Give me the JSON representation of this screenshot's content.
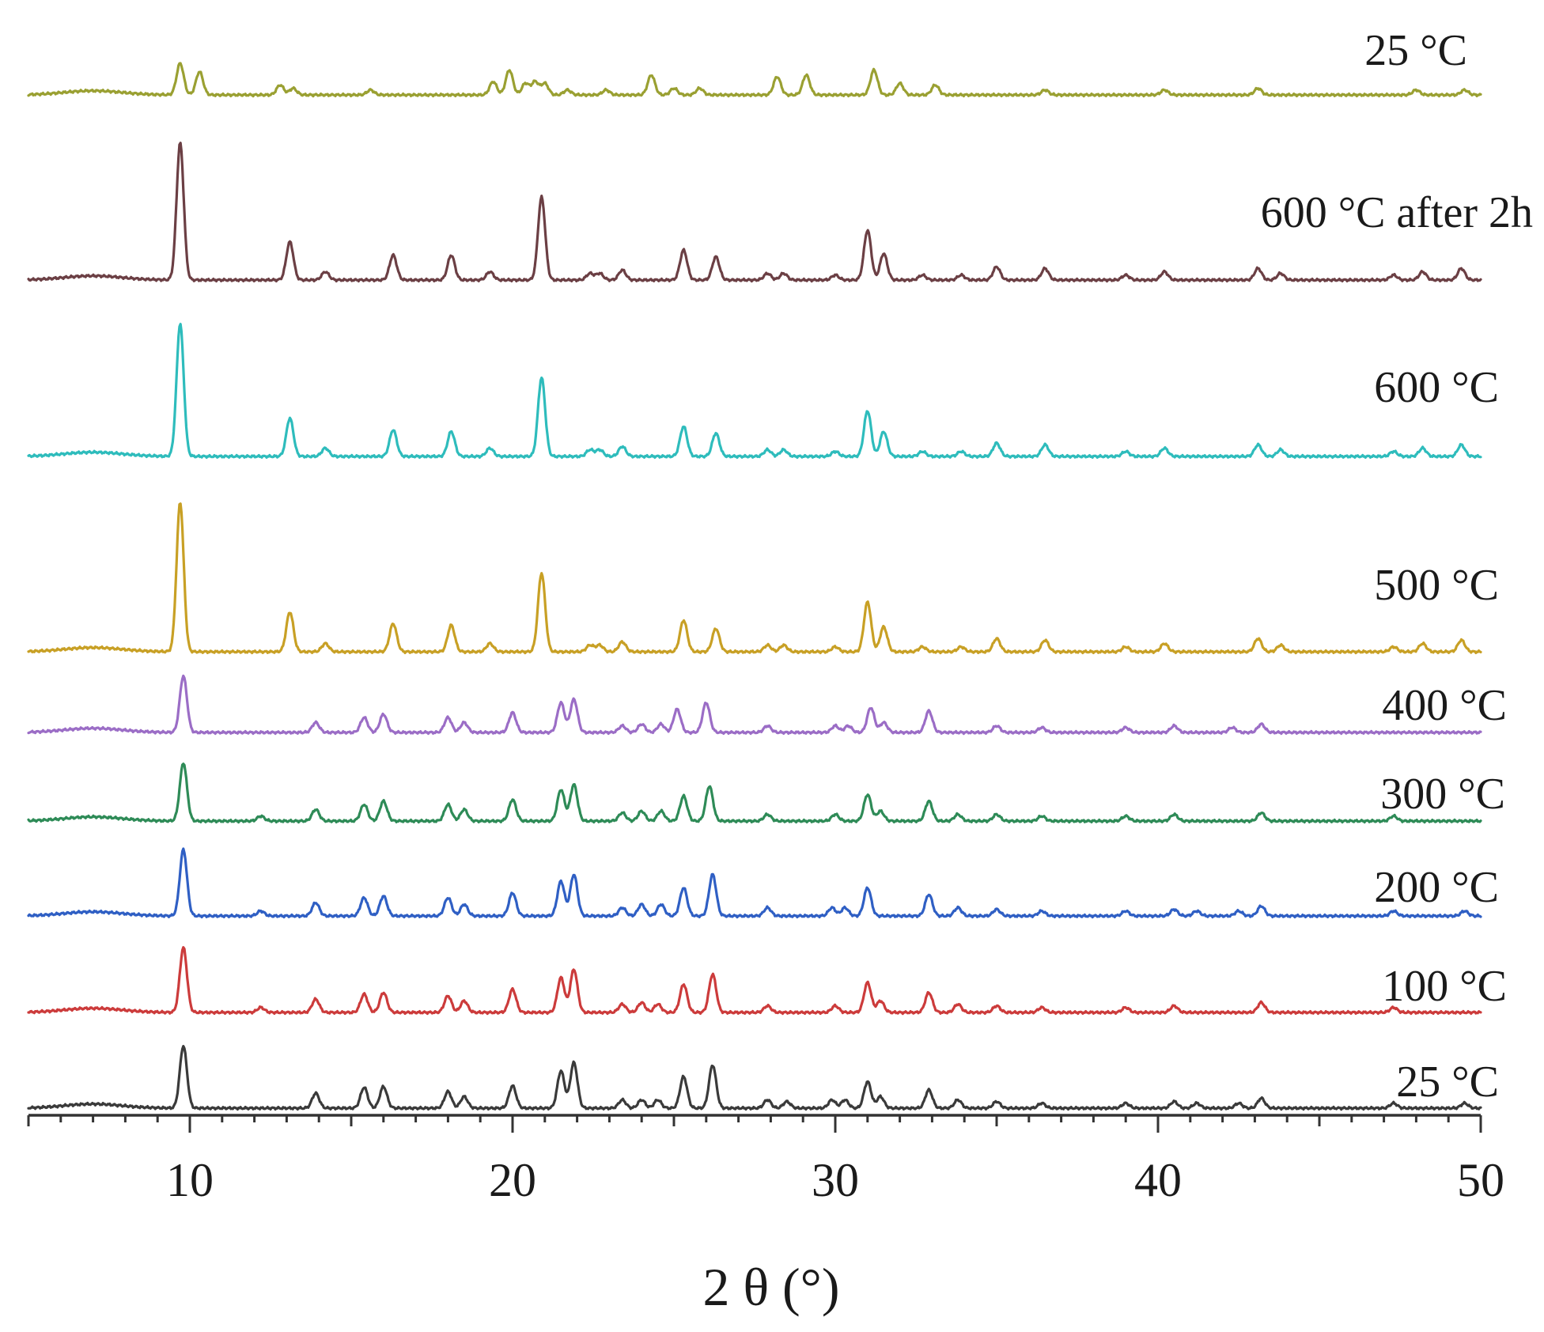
{
  "chart_data": {
    "type": "line",
    "title": "",
    "xlabel": "2 θ (°)",
    "ylabel": "",
    "xlim": [
      5,
      50
    ],
    "x_ticks": [
      10,
      20,
      30,
      40,
      50
    ],
    "grid": false,
    "legend": "labels at right end of each trace",
    "series": [
      {
        "name": "25 °C",
        "color": "#3a3a3a",
        "baseline": 0,
        "peaks": [
          [
            9.8,
            75
          ],
          [
            13.9,
            18
          ],
          [
            15.4,
            25
          ],
          [
            16.0,
            26
          ],
          [
            18.0,
            20
          ],
          [
            18.5,
            14
          ],
          [
            20.0,
            27
          ],
          [
            21.5,
            45
          ],
          [
            21.9,
            55
          ],
          [
            23.4,
            10
          ],
          [
            24.0,
            10
          ],
          [
            24.5,
            10
          ],
          [
            25.3,
            38
          ],
          [
            26.2,
            52
          ],
          [
            27.9,
            10
          ],
          [
            28.5,
            8
          ],
          [
            29.9,
            10
          ],
          [
            30.3,
            10
          ],
          [
            31.0,
            32
          ],
          [
            31.4,
            14
          ],
          [
            32.9,
            22
          ],
          [
            33.8,
            10
          ],
          [
            35.0,
            8
          ],
          [
            36.4,
            6
          ],
          [
            39.0,
            6
          ],
          [
            40.5,
            8
          ],
          [
            41.2,
            6
          ],
          [
            42.5,
            6
          ],
          [
            43.2,
            12
          ],
          [
            47.3,
            6
          ],
          [
            49.5,
            6
          ]
        ]
      },
      {
        "name": "100 °C",
        "color": "#cc3b3b",
        "baseline": 1,
        "peaks": [
          [
            9.8,
            78
          ],
          [
            12.2,
            6
          ],
          [
            13.9,
            16
          ],
          [
            15.4,
            22
          ],
          [
            16.0,
            24
          ],
          [
            18.0,
            20
          ],
          [
            18.5,
            14
          ],
          [
            20.0,
            28
          ],
          [
            21.5,
            42
          ],
          [
            21.9,
            52
          ],
          [
            23.4,
            10
          ],
          [
            24.0,
            12
          ],
          [
            24.5,
            10
          ],
          [
            25.3,
            34
          ],
          [
            26.2,
            46
          ],
          [
            27.9,
            8
          ],
          [
            30.0,
            8
          ],
          [
            31.0,
            36
          ],
          [
            31.4,
            14
          ],
          [
            32.9,
            24
          ],
          [
            33.8,
            10
          ],
          [
            35.0,
            8
          ],
          [
            36.4,
            6
          ],
          [
            39.0,
            6
          ],
          [
            40.5,
            8
          ],
          [
            43.2,
            12
          ],
          [
            47.3,
            6
          ]
        ]
      },
      {
        "name": "200 °C",
        "color": "#2f5fc4",
        "baseline": 2,
        "peaks": [
          [
            9.8,
            80
          ],
          [
            12.2,
            6
          ],
          [
            13.9,
            16
          ],
          [
            15.4,
            22
          ],
          [
            16.0,
            24
          ],
          [
            18.0,
            22
          ],
          [
            18.5,
            14
          ],
          [
            20.0,
            28
          ],
          [
            21.5,
            42
          ],
          [
            21.9,
            50
          ],
          [
            23.4,
            10
          ],
          [
            24.0,
            14
          ],
          [
            24.6,
            14
          ],
          [
            25.3,
            34
          ],
          [
            26.2,
            50
          ],
          [
            27.9,
            10
          ],
          [
            29.9,
            10
          ],
          [
            30.3,
            10
          ],
          [
            31.0,
            34
          ],
          [
            32.9,
            26
          ],
          [
            33.8,
            10
          ],
          [
            35.0,
            8
          ],
          [
            36.4,
            6
          ],
          [
            39.0,
            6
          ],
          [
            40.5,
            8
          ],
          [
            41.2,
            6
          ],
          [
            42.5,
            6
          ],
          [
            43.2,
            12
          ],
          [
            47.3,
            6
          ],
          [
            49.5,
            6
          ]
        ]
      },
      {
        "name": "300 °C",
        "color": "#2e8b57",
        "baseline": 3,
        "peaks": [
          [
            9.8,
            70
          ],
          [
            12.2,
            6
          ],
          [
            13.9,
            14
          ],
          [
            15.4,
            20
          ],
          [
            16.0,
            24
          ],
          [
            18.0,
            20
          ],
          [
            18.5,
            14
          ],
          [
            20.0,
            26
          ],
          [
            21.5,
            38
          ],
          [
            21.9,
            44
          ],
          [
            23.4,
            10
          ],
          [
            24.0,
            12
          ],
          [
            24.6,
            12
          ],
          [
            25.3,
            30
          ],
          [
            26.1,
            42
          ],
          [
            27.9,
            8
          ],
          [
            30.0,
            8
          ],
          [
            31.0,
            32
          ],
          [
            31.4,
            12
          ],
          [
            32.9,
            24
          ],
          [
            33.8,
            8
          ],
          [
            35.0,
            8
          ],
          [
            36.4,
            6
          ],
          [
            39.0,
            6
          ],
          [
            40.5,
            8
          ],
          [
            43.2,
            10
          ],
          [
            47.3,
            6
          ]
        ]
      },
      {
        "name": "400 °C",
        "color": "#9b6dc6",
        "baseline": 4,
        "peaks": [
          [
            9.8,
            68
          ],
          [
            13.9,
            12
          ],
          [
            15.4,
            18
          ],
          [
            16.0,
            22
          ],
          [
            18.0,
            18
          ],
          [
            18.5,
            12
          ],
          [
            20.0,
            24
          ],
          [
            21.5,
            36
          ],
          [
            21.9,
            40
          ],
          [
            23.4,
            8
          ],
          [
            24.0,
            10
          ],
          [
            24.6,
            10
          ],
          [
            25.1,
            28
          ],
          [
            26.0,
            36
          ],
          [
            27.9,
            8
          ],
          [
            30.0,
            8
          ],
          [
            30.4,
            8
          ],
          [
            31.1,
            30
          ],
          [
            31.5,
            12
          ],
          [
            32.9,
            26
          ],
          [
            35.0,
            8
          ],
          [
            36.4,
            6
          ],
          [
            39.0,
            6
          ],
          [
            40.5,
            8
          ],
          [
            42.3,
            6
          ],
          [
            43.2,
            10
          ]
        ]
      },
      {
        "name": "500 °C",
        "color": "#c8a025",
        "baseline": 5,
        "peaks": [
          [
            9.7,
            180
          ],
          [
            13.1,
            48
          ],
          [
            14.2,
            10
          ],
          [
            16.3,
            34
          ],
          [
            18.1,
            32
          ],
          [
            19.3,
            10
          ],
          [
            20.9,
            95
          ],
          [
            22.4,
            8
          ],
          [
            22.7,
            8
          ],
          [
            23.4,
            12
          ],
          [
            25.3,
            38
          ],
          [
            26.3,
            28
          ],
          [
            27.9,
            8
          ],
          [
            28.4,
            8
          ],
          [
            30.0,
            6
          ],
          [
            31.0,
            60
          ],
          [
            31.5,
            30
          ],
          [
            32.7,
            6
          ],
          [
            33.9,
            6
          ],
          [
            35.0,
            16
          ],
          [
            36.5,
            14
          ],
          [
            39.0,
            6
          ],
          [
            40.2,
            10
          ],
          [
            43.1,
            16
          ],
          [
            43.8,
            8
          ],
          [
            47.3,
            6
          ],
          [
            48.2,
            10
          ],
          [
            49.4,
            14
          ]
        ]
      },
      {
        "name": "600 °C",
        "color": "#2ebcbc",
        "baseline": 6,
        "peaks": [
          [
            9.7,
            160
          ],
          [
            13.1,
            46
          ],
          [
            14.2,
            10
          ],
          [
            16.3,
            32
          ],
          [
            18.1,
            30
          ],
          [
            19.3,
            10
          ],
          [
            20.9,
            95
          ],
          [
            22.4,
            8
          ],
          [
            22.7,
            8
          ],
          [
            23.4,
            12
          ],
          [
            25.3,
            36
          ],
          [
            26.3,
            28
          ],
          [
            27.9,
            8
          ],
          [
            28.4,
            8
          ],
          [
            30.0,
            6
          ],
          [
            31.0,
            55
          ],
          [
            31.5,
            30
          ],
          [
            32.7,
            6
          ],
          [
            33.9,
            6
          ],
          [
            35.0,
            16
          ],
          [
            36.5,
            14
          ],
          [
            39.0,
            6
          ],
          [
            40.2,
            10
          ],
          [
            43.1,
            14
          ],
          [
            43.8,
            8
          ],
          [
            47.3,
            6
          ],
          [
            48.2,
            10
          ],
          [
            49.4,
            14
          ]
        ]
      },
      {
        "name": "600 °C after 2h",
        "color": "#6b3f44",
        "baseline": 7,
        "peaks": [
          [
            9.7,
            165
          ],
          [
            13.1,
            46
          ],
          [
            14.2,
            10
          ],
          [
            16.3,
            30
          ],
          [
            18.1,
            30
          ],
          [
            19.3,
            10
          ],
          [
            20.9,
            100
          ],
          [
            22.4,
            8
          ],
          [
            22.7,
            8
          ],
          [
            23.4,
            12
          ],
          [
            25.3,
            36
          ],
          [
            26.3,
            28
          ],
          [
            27.9,
            8
          ],
          [
            28.4,
            8
          ],
          [
            30.0,
            6
          ],
          [
            31.0,
            60
          ],
          [
            31.5,
            32
          ],
          [
            32.7,
            6
          ],
          [
            33.9,
            6
          ],
          [
            35.0,
            16
          ],
          [
            36.5,
            14
          ],
          [
            39.0,
            6
          ],
          [
            40.2,
            10
          ],
          [
            43.1,
            14
          ],
          [
            43.8,
            8
          ],
          [
            47.3,
            6
          ],
          [
            48.2,
            10
          ],
          [
            49.4,
            14
          ]
        ]
      },
      {
        "name": "25 °C",
        "color": "#9aa032",
        "baseline": 8,
        "peaks": [
          [
            9.7,
            38
          ],
          [
            10.3,
            28
          ],
          [
            12.8,
            12
          ],
          [
            13.2,
            8
          ],
          [
            15.6,
            6
          ],
          [
            19.4,
            16
          ],
          [
            19.9,
            30
          ],
          [
            20.4,
            14
          ],
          [
            20.7,
            16
          ],
          [
            21.0,
            14
          ],
          [
            21.7,
            6
          ],
          [
            22.9,
            6
          ],
          [
            24.3,
            24
          ],
          [
            25.0,
            8
          ],
          [
            25.8,
            8
          ],
          [
            28.2,
            22
          ],
          [
            29.1,
            24
          ],
          [
            31.2,
            30
          ],
          [
            32.0,
            14
          ],
          [
            33.1,
            12
          ],
          [
            36.5,
            6
          ],
          [
            40.2,
            6
          ],
          [
            43.1,
            8
          ],
          [
            48.0,
            6
          ],
          [
            49.5,
            6
          ]
        ]
      }
    ]
  }
}
